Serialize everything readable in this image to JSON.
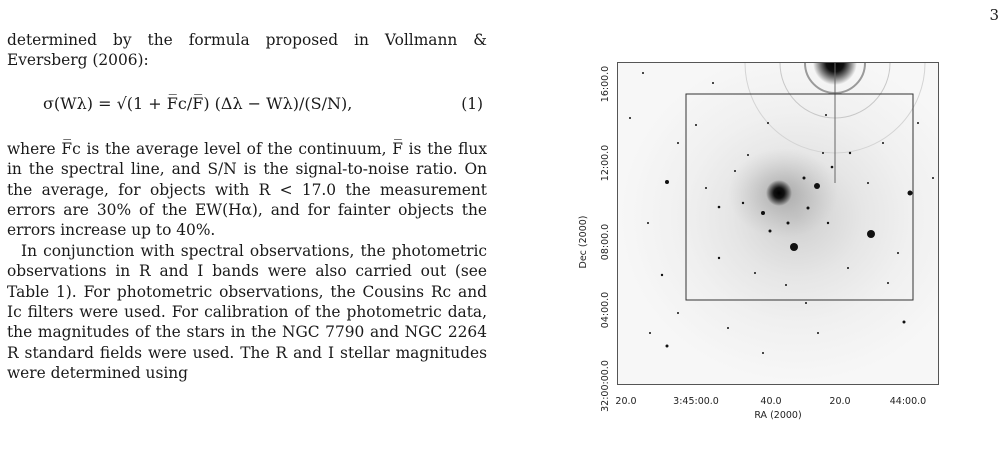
{
  "page": {
    "number": "3"
  },
  "text": {
    "para1": "determined by the formula proposed in Vollmann & Eversberg (2006):",
    "equation": "σ(Wλ) = √(1 + F̅c/F̅) (Δλ − Wλ)/(S/N),",
    "equation_number": "(1)",
    "para2": "where F̅c is the average level of the continuum, F̅ is the flux in the spectral line, and S/N is the signal-to-noise ratio. On the average, for objects with R < 17.0 the measurement errors are 30% of the EW(Hα), and for fainter objects the errors increase up to 40%.",
    "para3": "In conjunction with spectral observations, the photometric observations in R and I bands were also carried out (see Table 1). For photometric observations, the Cousins Rc and Ic filters were used. For calibration of the photometric data, the magnitudes of the stars in the NGC 7790 and NGC 2264 R standard fields were used. The R and I stellar magnitudes were determined using"
  },
  "figure": {
    "x_axis_label": "RA (2000)",
    "y_axis_label": "Dec (2000)",
    "x_tick_labels": [
      "20.0",
      "3:45:00.0",
      "40.0",
      "20.0",
      "44:00.0"
    ],
    "y_tick_labels": [
      "16:00.0",
      "12:00.0",
      "08:00.0",
      "04:00.0",
      "32:00:00.0"
    ]
  }
}
